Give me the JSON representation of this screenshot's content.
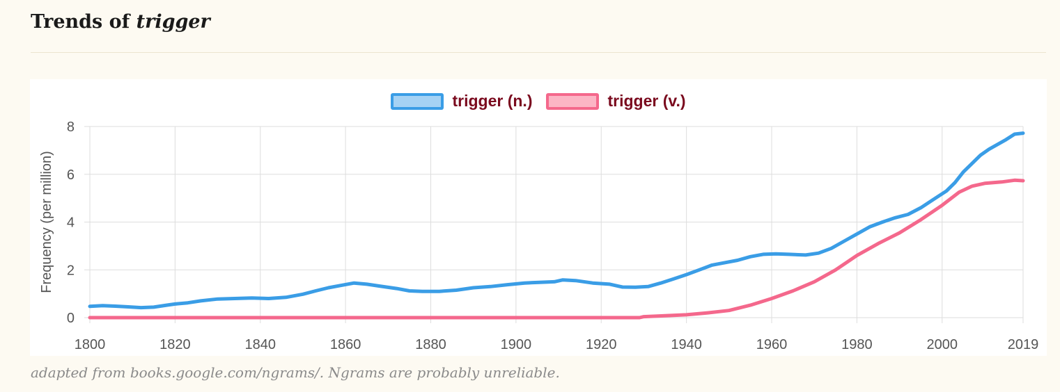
{
  "header": {
    "title_prefix": "Trends of ",
    "title_term": "trigger"
  },
  "footnote": "adapted from books.google.com/ngrams/. Ngrams are probably unreliable.",
  "chart_data": {
    "type": "line",
    "title": "",
    "xlabel": "",
    "ylabel": "Frequency (per million)",
    "xlim": [
      1800,
      2019
    ],
    "ylim": [
      0,
      8
    ],
    "x_ticks": [
      1800,
      1820,
      1840,
      1860,
      1880,
      1900,
      1920,
      1940,
      1960,
      1980,
      2000,
      2019
    ],
    "y_ticks": [
      0,
      2,
      4,
      6,
      8
    ],
    "grid": true,
    "legend_position": "top-center",
    "series": [
      {
        "name": "trigger (n.)",
        "color": "#3a9de6",
        "fill": "#a5d2f4",
        "points": [
          [
            1800,
            0.47
          ],
          [
            1803,
            0.5
          ],
          [
            1806,
            0.48
          ],
          [
            1809,
            0.45
          ],
          [
            1812,
            0.42
          ],
          [
            1815,
            0.44
          ],
          [
            1818,
            0.52
          ],
          [
            1820,
            0.57
          ],
          [
            1823,
            0.62
          ],
          [
            1826,
            0.7
          ],
          [
            1830,
            0.78
          ],
          [
            1834,
            0.8
          ],
          [
            1838,
            0.82
          ],
          [
            1842,
            0.8
          ],
          [
            1846,
            0.85
          ],
          [
            1850,
            0.98
          ],
          [
            1853,
            1.12
          ],
          [
            1856,
            1.25
          ],
          [
            1859,
            1.35
          ],
          [
            1862,
            1.45
          ],
          [
            1865,
            1.4
          ],
          [
            1868,
            1.32
          ],
          [
            1872,
            1.22
          ],
          [
            1875,
            1.12
          ],
          [
            1878,
            1.1
          ],
          [
            1882,
            1.1
          ],
          [
            1886,
            1.15
          ],
          [
            1890,
            1.25
          ],
          [
            1894,
            1.3
          ],
          [
            1898,
            1.38
          ],
          [
            1902,
            1.45
          ],
          [
            1906,
            1.48
          ],
          [
            1909,
            1.5
          ],
          [
            1911,
            1.58
          ],
          [
            1914,
            1.55
          ],
          [
            1918,
            1.45
          ],
          [
            1922,
            1.4
          ],
          [
            1925,
            1.28
          ],
          [
            1928,
            1.27
          ],
          [
            1931,
            1.3
          ],
          [
            1934,
            1.45
          ],
          [
            1937,
            1.62
          ],
          [
            1940,
            1.8
          ],
          [
            1943,
            2.0
          ],
          [
            1946,
            2.2
          ],
          [
            1949,
            2.3
          ],
          [
            1952,
            2.4
          ],
          [
            1955,
            2.55
          ],
          [
            1958,
            2.65
          ],
          [
            1961,
            2.67
          ],
          [
            1964,
            2.65
          ],
          [
            1968,
            2.62
          ],
          [
            1971,
            2.7
          ],
          [
            1974,
            2.9
          ],
          [
            1977,
            3.2
          ],
          [
            1980,
            3.5
          ],
          [
            1983,
            3.8
          ],
          [
            1986,
            4.0
          ],
          [
            1989,
            4.18
          ],
          [
            1992,
            4.32
          ],
          [
            1995,
            4.6
          ],
          [
            1998,
            4.95
          ],
          [
            2001,
            5.3
          ],
          [
            2003,
            5.65
          ],
          [
            2005,
            6.1
          ],
          [
            2007,
            6.45
          ],
          [
            2009,
            6.8
          ],
          [
            2011,
            7.05
          ],
          [
            2013,
            7.25
          ],
          [
            2015,
            7.45
          ],
          [
            2017,
            7.68
          ],
          [
            2019,
            7.72
          ]
        ]
      },
      {
        "name": "trigger (v.)",
        "color": "#f4688c",
        "fill": "#fcb5c5",
        "points": [
          [
            1800,
            0.0
          ],
          [
            1929,
            0.0
          ],
          [
            1930,
            0.04
          ],
          [
            1935,
            0.08
          ],
          [
            1940,
            0.12
          ],
          [
            1945,
            0.2
          ],
          [
            1950,
            0.3
          ],
          [
            1955,
            0.52
          ],
          [
            1960,
            0.8
          ],
          [
            1965,
            1.12
          ],
          [
            1970,
            1.5
          ],
          [
            1975,
            2.0
          ],
          [
            1980,
            2.6
          ],
          [
            1985,
            3.1
          ],
          [
            1990,
            3.55
          ],
          [
            1995,
            4.1
          ],
          [
            2000,
            4.7
          ],
          [
            2004,
            5.25
          ],
          [
            2007,
            5.5
          ],
          [
            2010,
            5.62
          ],
          [
            2014,
            5.68
          ],
          [
            2017,
            5.75
          ],
          [
            2019,
            5.73
          ]
        ]
      }
    ]
  }
}
